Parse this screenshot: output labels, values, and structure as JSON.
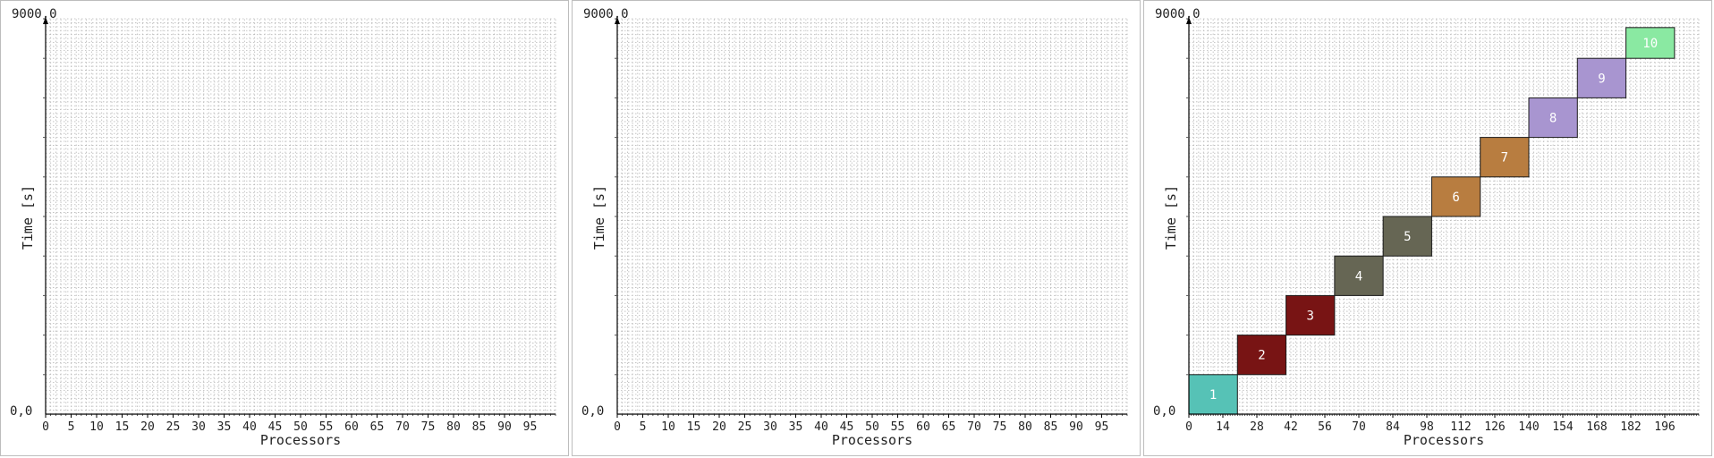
{
  "chart_data": [
    {
      "type": "gantt",
      "xlabel": "Processors",
      "ylabel": "Time [s]",
      "ytop_label": "9000,0",
      "ybottom_label": "0,0",
      "xlim": [
        0,
        100
      ],
      "ylim": [
        0,
        9000
      ],
      "x_ticks": [
        "0",
        "5",
        "10",
        "15",
        "20",
        "25",
        "30",
        "35",
        "40",
        "45",
        "50",
        "55",
        "60",
        "65",
        "70",
        "75",
        "80",
        "85",
        "90",
        "95"
      ],
      "x_tick_step": 5,
      "grid": true,
      "tasks": []
    },
    {
      "type": "gantt",
      "xlabel": "Processors",
      "ylabel": "Time [s]",
      "ytop_label": "9000,0",
      "ybottom_label": "0,0",
      "xlim": [
        0,
        100
      ],
      "ylim": [
        0,
        9000
      ],
      "x_ticks": [
        "0",
        "5",
        "10",
        "15",
        "20",
        "25",
        "30",
        "35",
        "40",
        "45",
        "50",
        "55",
        "60",
        "65",
        "70",
        "75",
        "80",
        "85",
        "90",
        "95"
      ],
      "x_tick_step": 5,
      "grid": true,
      "tasks": []
    },
    {
      "type": "gantt",
      "xlabel": "Processors",
      "ylabel": "Time [s]",
      "ytop_label": "9000,0",
      "ybottom_label": "0,0",
      "xlim": [
        0,
        210
      ],
      "ylim": [
        0,
        9000
      ],
      "x_ticks": [
        "0",
        "14",
        "28",
        "42",
        "56",
        "70",
        "84",
        "98",
        "112",
        "126",
        "140",
        "154",
        "168",
        "182",
        "196"
      ],
      "x_tick_step": 14,
      "grid": true,
      "tasks": [
        {
          "label": "1",
          "x_start": 0,
          "x_end": 20,
          "y_start": 0,
          "y_end": 900,
          "color": "#56c2b6",
          "text_color": "#ffffff"
        },
        {
          "label": "2",
          "x_start": 20,
          "x_end": 40,
          "y_start": 900,
          "y_end": 1800,
          "color": "#781414",
          "text_color": "#ffffff"
        },
        {
          "label": "3",
          "x_start": 40,
          "x_end": 60,
          "y_start": 1800,
          "y_end": 2700,
          "color": "#781414",
          "text_color": "#ffffff"
        },
        {
          "label": "4",
          "x_start": 60,
          "x_end": 80,
          "y_start": 2700,
          "y_end": 3600,
          "color": "#666654",
          "text_color": "#ffffff"
        },
        {
          "label": "5",
          "x_start": 80,
          "x_end": 100,
          "y_start": 3600,
          "y_end": 4500,
          "color": "#666654",
          "text_color": "#ffffff"
        },
        {
          "label": "6",
          "x_start": 100,
          "x_end": 120,
          "y_start": 4500,
          "y_end": 5400,
          "color": "#b87d40",
          "text_color": "#ffffff"
        },
        {
          "label": "7",
          "x_start": 120,
          "x_end": 140,
          "y_start": 5400,
          "y_end": 6300,
          "color": "#b87d40",
          "text_color": "#ffffff"
        },
        {
          "label": "8",
          "x_start": 140,
          "x_end": 160,
          "y_start": 6300,
          "y_end": 7200,
          "color": "#a895d0",
          "text_color": "#ffffff"
        },
        {
          "label": "9",
          "x_start": 160,
          "x_end": 180,
          "y_start": 7200,
          "y_end": 8100,
          "color": "#a895d0",
          "text_color": "#ffffff"
        },
        {
          "label": "10",
          "x_start": 180,
          "x_end": 200,
          "y_start": 8100,
          "y_end": 8800,
          "color": "#8ae9a2",
          "text_color": "#ffffff"
        }
      ]
    }
  ]
}
